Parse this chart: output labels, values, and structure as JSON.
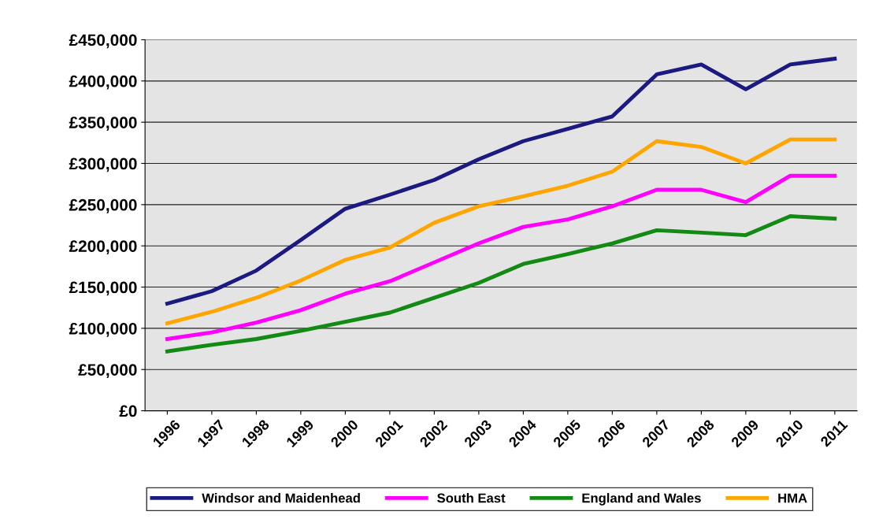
{
  "chart_data": {
    "type": "line",
    "categories": [
      "1996",
      "1997",
      "1998",
      "1999",
      "2000",
      "2001",
      "2002",
      "2003",
      "2004",
      "2005",
      "2006",
      "2007",
      "2008",
      "2009",
      "2010",
      "2011"
    ],
    "series": [
      {
        "name": "Windsor and Maidenhead",
        "color": "#1a1a80",
        "values": [
          130000,
          145000,
          170000,
          207000,
          245000,
          262000,
          280000,
          305000,
          327000,
          342000,
          357000,
          408000,
          420000,
          390000,
          420000,
          427000
        ]
      },
      {
        "name": "South East",
        "color": "#ff00ff",
        "values": [
          87000,
          95000,
          107000,
          122000,
          142000,
          157000,
          180000,
          203000,
          223000,
          232000,
          248000,
          268000,
          268000,
          253000,
          285000,
          285000
        ]
      },
      {
        "name": "England and Wales",
        "color": "#138a13",
        "values": [
          72000,
          80000,
          87000,
          97000,
          108000,
          119000,
          137000,
          155000,
          178000,
          190000,
          203000,
          219000,
          216000,
          213000,
          236000,
          233000
        ]
      },
      {
        "name": "HMA",
        "color": "#ffa500",
        "values": [
          106000,
          120000,
          137000,
          158000,
          183000,
          198000,
          228000,
          248000,
          260000,
          273000,
          290000,
          327000,
          320000,
          300000,
          329000,
          329000
        ]
      }
    ],
    "ylim": [
      0,
      450000
    ],
    "yticks": [
      {
        "value": 0,
        "label": "£0"
      },
      {
        "value": 50000,
        "label": "£50,000"
      },
      {
        "value": 100000,
        "label": "£100,000"
      },
      {
        "value": 150000,
        "label": "£150,000"
      },
      {
        "value": 200000,
        "label": "£200,000"
      },
      {
        "value": 250000,
        "label": "£250,000"
      },
      {
        "value": 300000,
        "label": "£300,000"
      },
      {
        "value": 350000,
        "label": "£350,000"
      },
      {
        "value": 400000,
        "label": "£400,000"
      },
      {
        "value": 450000,
        "label": "£450,000"
      }
    ],
    "grid": "y",
    "legend": "bottom",
    "marker": "none",
    "line_style": "solid"
  }
}
